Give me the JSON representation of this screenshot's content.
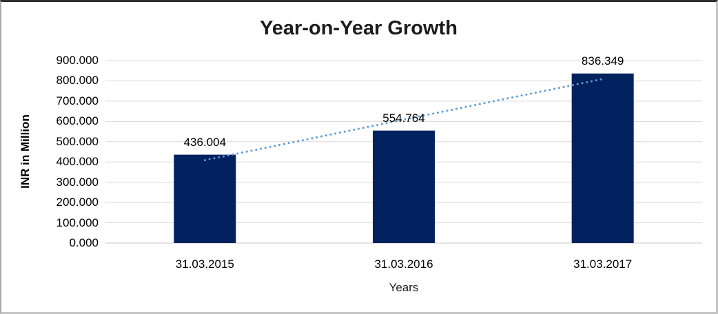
{
  "chart_data": {
    "type": "bar",
    "title": "Year-on-Year Growth",
    "xlabel": "Years",
    "ylabel": "INR in Million",
    "categories": [
      "31.03.2015",
      "31.03.2016",
      "31.03.2017"
    ],
    "values": [
      436.004,
      554.764,
      836.349
    ],
    "data_labels": [
      "436.004",
      "554.764",
      "836.349"
    ],
    "y_ticks": [
      "0.000",
      "100.000",
      "200.000",
      "300.000",
      "400.000",
      "500.000",
      "600.000",
      "700.000",
      "800.000",
      "900.000"
    ],
    "ylim": [
      0,
      900
    ],
    "grid": true,
    "legend_position": "none",
    "bar_color": "#01215F",
    "gridline_color": "#D9D9D9",
    "axis_line_color": "#C9C9C9",
    "trendline": {
      "type": "linear",
      "style": "dotted",
      "color": "#5B9BD5"
    }
  }
}
